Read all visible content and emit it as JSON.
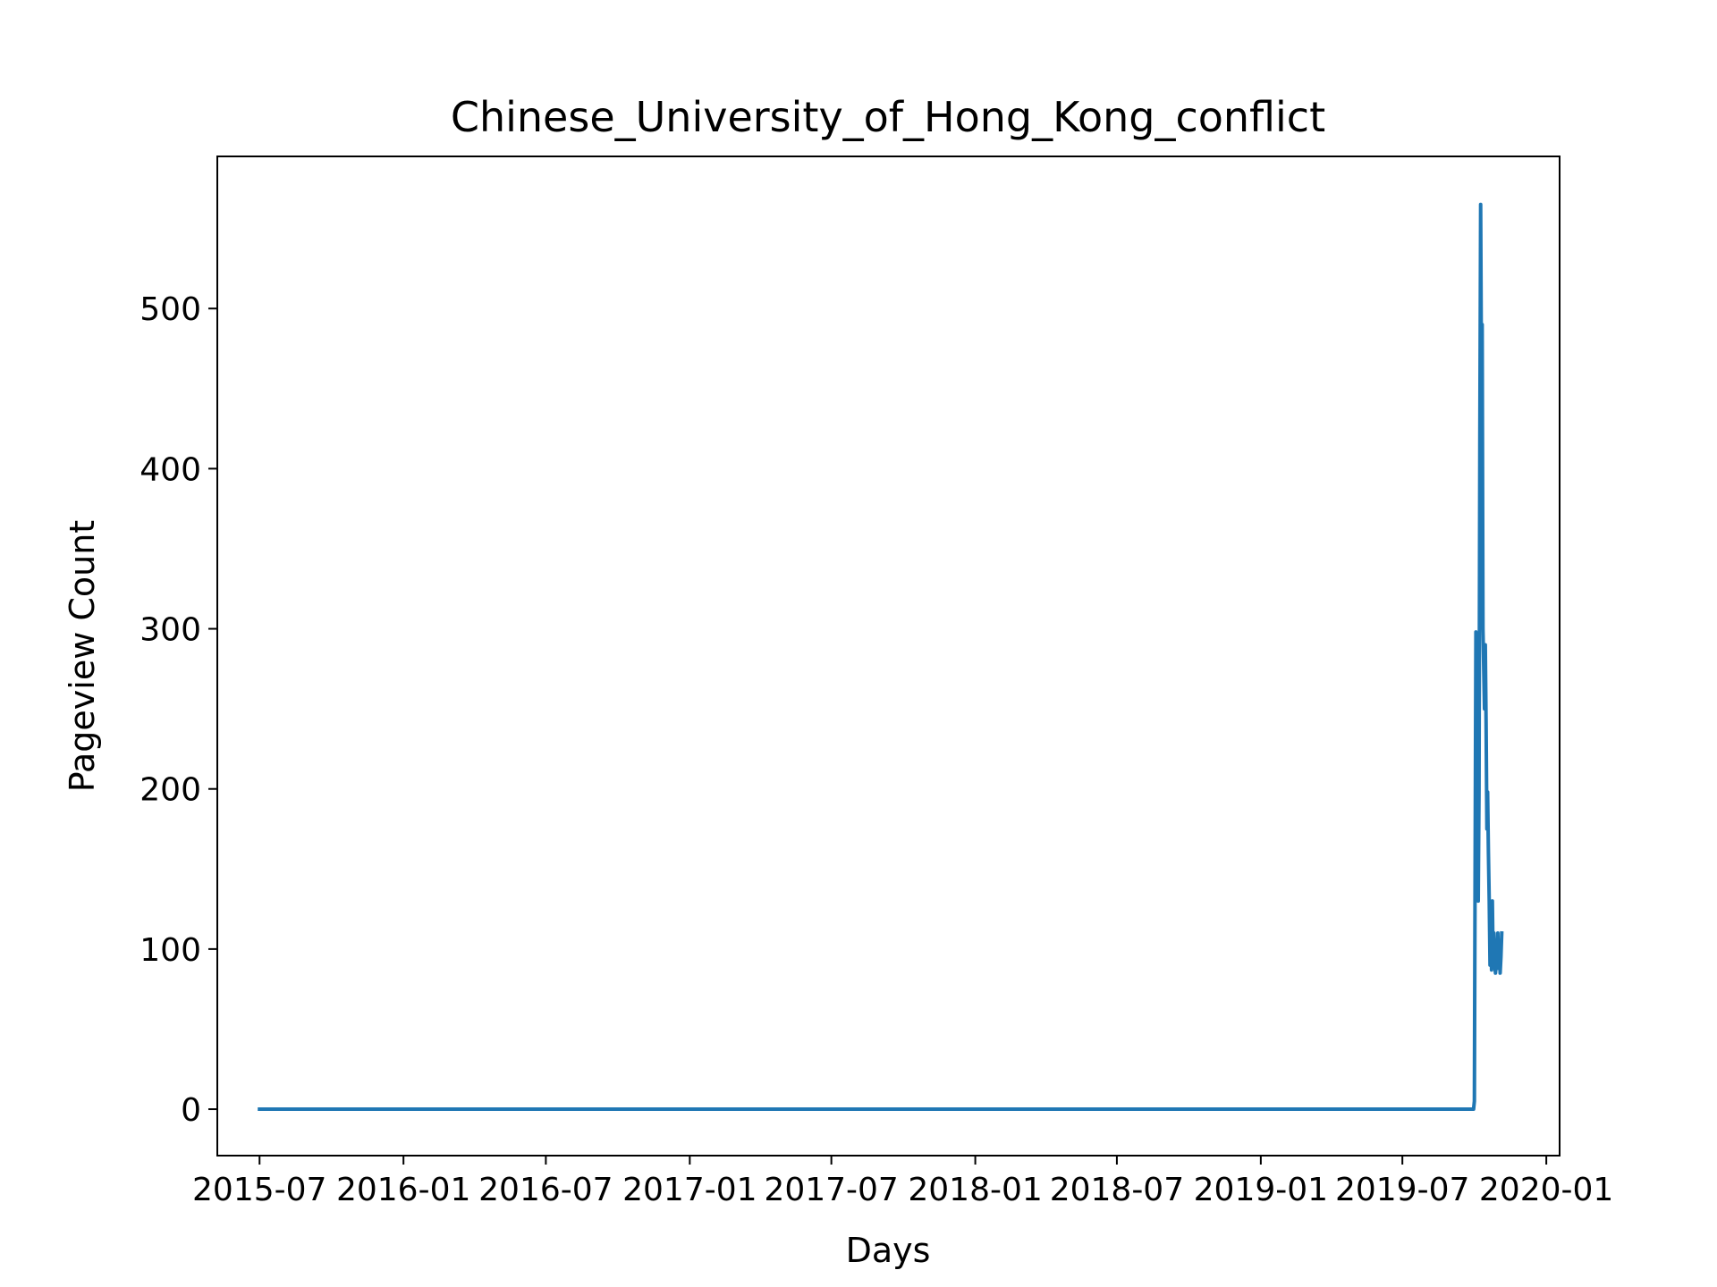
{
  "chart_data": {
    "type": "line",
    "title": "Chinese_University_of_Hong_Kong_conflict",
    "xlabel": "Days",
    "ylabel": "Pageview Count",
    "x_scale": "date",
    "xlim": [
      "2015-05-08",
      "2020-01-18"
    ],
    "ylim": [
      -29,
      595
    ],
    "xticks": [
      {
        "date": "2015-07-01",
        "label": "2015-07"
      },
      {
        "date": "2016-01-01",
        "label": "2016-01"
      },
      {
        "date": "2016-07-01",
        "label": "2016-07"
      },
      {
        "date": "2017-01-01",
        "label": "2017-01"
      },
      {
        "date": "2017-07-01",
        "label": "2017-07"
      },
      {
        "date": "2018-01-01",
        "label": "2018-01"
      },
      {
        "date": "2018-07-01",
        "label": "2018-07"
      },
      {
        "date": "2019-01-01",
        "label": "2019-01"
      },
      {
        "date": "2019-07-01",
        "label": "2019-07"
      },
      {
        "date": "2020-01-01",
        "label": "2020-01"
      }
    ],
    "yticks": [
      0,
      100,
      200,
      300,
      400,
      500
    ],
    "grid": false,
    "legend": "none",
    "series_color": "#1f77b4",
    "series": [
      {
        "x": [
          "2015-07-01",
          "2019-09-30",
          "2019-10-01",
          "2019-10-02",
          "2019-10-03",
          "2019-10-05",
          "2019-10-06",
          "2019-10-07",
          "2019-10-08",
          "2019-10-09",
          "2019-10-10",
          "2019-10-11",
          "2019-10-12",
          "2019-10-14",
          "2019-10-15",
          "2019-10-16",
          "2019-10-17",
          "2019-10-18",
          "2019-10-19",
          "2019-10-20",
          "2019-10-21",
          "2019-10-22",
          "2019-10-23",
          "2019-10-24",
          "2019-10-25",
          "2019-10-26",
          "2019-10-27",
          "2019-10-28",
          "2019-10-30",
          "2019-10-31",
          "2019-11-01",
          "2019-11-02",
          "2019-11-03",
          "2019-11-04",
          "2019-11-05"
        ],
        "y": [
          0,
          0,
          5,
          150,
          298,
          290,
          130,
          200,
          420,
          565,
          470,
          490,
          300,
          250,
          290,
          240,
          175,
          198,
          160,
          130,
          90,
          120,
          87,
          130,
          95,
          110,
          90,
          85,
          95,
          110,
          88,
          100,
          85,
          95,
          110
        ]
      }
    ]
  }
}
